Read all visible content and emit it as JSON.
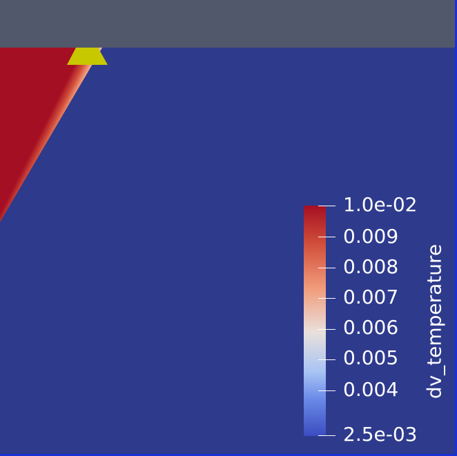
{
  "view": {
    "background_color": "#2e3a8c",
    "top_band_color": "#52586b",
    "frame_color": "#1a2fd6",
    "marker_color": "#c8c800",
    "high_value_color": "#a50f23"
  },
  "scalar_bar": {
    "title": "dv_temperature",
    "range": [
      0.0025,
      0.01
    ],
    "colormap": "Cool to Warm",
    "ticks": [
      {
        "value": 0.01,
        "label": "1.0e-02"
      },
      {
        "value": 0.009,
        "label": "0.009"
      },
      {
        "value": 0.008,
        "label": "0.008"
      },
      {
        "value": 0.007,
        "label": "0.007"
      },
      {
        "value": 0.006,
        "label": "0.006"
      },
      {
        "value": 0.005,
        "label": "0.005"
      },
      {
        "value": 0.004,
        "label": "0.004"
      },
      {
        "value": 0.0025,
        "label": "2.5e-03"
      }
    ]
  }
}
